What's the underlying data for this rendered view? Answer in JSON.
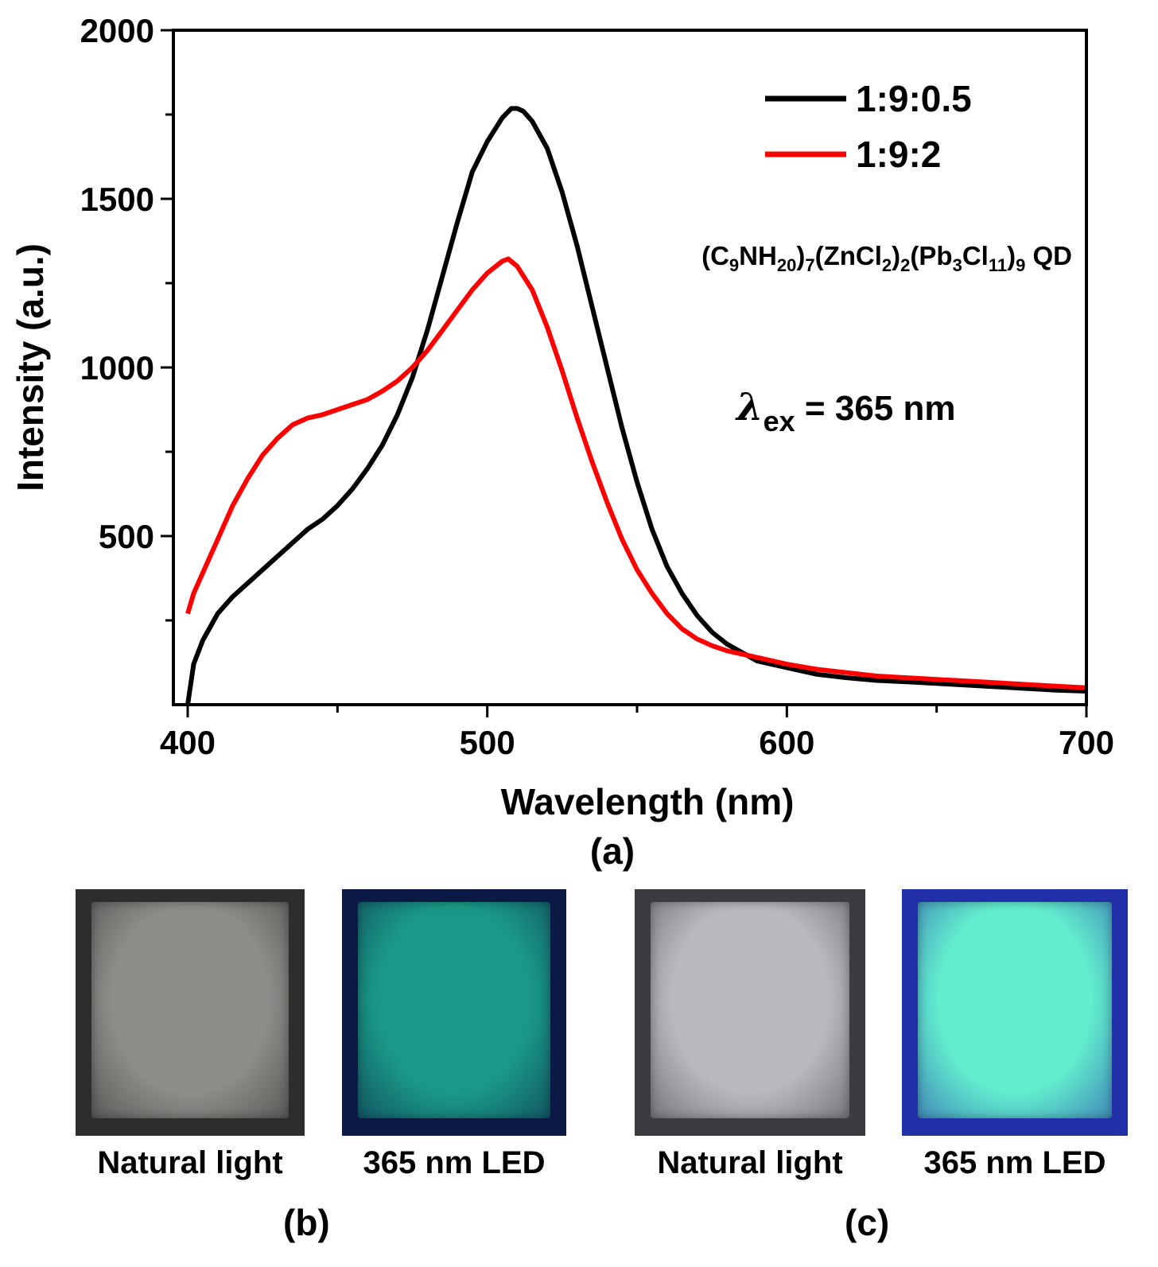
{
  "chart_data": {
    "type": "line",
    "xlabel": "Wavelength (nm)",
    "ylabel": "Intensity (a.u.)",
    "xlim": [
      400,
      700
    ],
    "ylim": [
      0,
      2000
    ],
    "x_ticks": [
      "400",
      "500",
      "600",
      "700"
    ],
    "y_ticks": [
      "500",
      "1000",
      "1500",
      "2000"
    ],
    "grid": false,
    "legend_position": "top-right",
    "annotations": {
      "compound": {
        "text": "(C9NH20)7(ZnCl2)2(Pb3Cl11)9 QD",
        "parts": [
          "(C",
          "9",
          "NH",
          "20",
          ")",
          "7",
          "(ZnCl",
          "2",
          ")",
          "2",
          "(Pb",
          "3",
          "Cl",
          "11",
          ")",
          "9",
          " QD"
        ]
      },
      "excitation": {
        "symbol": "λ",
        "subscript": "ex",
        "text": " = 365 nm"
      }
    },
    "series": [
      {
        "name": "1:9:0.5",
        "color": "#000000",
        "x": [
          400,
          402,
          405,
          410,
          415,
          420,
          425,
          430,
          435,
          440,
          445,
          450,
          455,
          460,
          465,
          470,
          475,
          480,
          485,
          490,
          495,
          500,
          505,
          508,
          510,
          512,
          515,
          520,
          525,
          530,
          535,
          540,
          545,
          550,
          555,
          560,
          565,
          570,
          575,
          580,
          590,
          600,
          610,
          620,
          630,
          640,
          650,
          660,
          670,
          680,
          690,
          700
        ],
        "y": [
          0,
          120,
          190,
          270,
          320,
          360,
          400,
          440,
          480,
          520,
          550,
          590,
          640,
          700,
          770,
          860,
          970,
          1110,
          1270,
          1430,
          1580,
          1670,
          1740,
          1768,
          1768,
          1760,
          1730,
          1650,
          1520,
          1360,
          1180,
          1000,
          820,
          660,
          520,
          410,
          330,
          265,
          215,
          180,
          130,
          110,
          90,
          80,
          72,
          68,
          63,
          58,
          53,
          48,
          43,
          40
        ]
      },
      {
        "name": "1:9:2",
        "color": "#ff0000",
        "x": [
          400,
          402,
          405,
          410,
          415,
          420,
          425,
          430,
          435,
          440,
          445,
          450,
          455,
          460,
          465,
          470,
          475,
          480,
          485,
          490,
          495,
          500,
          505,
          507,
          510,
          515,
          520,
          525,
          530,
          535,
          540,
          545,
          550,
          555,
          560,
          565,
          570,
          575,
          580,
          590,
          600,
          610,
          620,
          630,
          640,
          650,
          660,
          670,
          680,
          690,
          700
        ],
        "y": [
          270,
          330,
          390,
          490,
          590,
          670,
          740,
          790,
          830,
          850,
          860,
          875,
          890,
          905,
          930,
          960,
          1000,
          1050,
          1110,
          1170,
          1230,
          1280,
          1315,
          1322,
          1300,
          1230,
          1120,
          990,
          850,
          720,
          600,
          490,
          400,
          330,
          270,
          225,
          195,
          175,
          160,
          140,
          120,
          105,
          95,
          85,
          80,
          75,
          70,
          65,
          60,
          55,
          50
        ]
      }
    ]
  },
  "photos": {
    "b_natural": {
      "caption": "Natural light",
      "base": "#8e8d8a",
      "edge": "#2e2d2b"
    },
    "b_uv": {
      "caption": "365 nm LED",
      "base": "#1a9a86",
      "edge": "#0b1a44"
    },
    "c_natural": {
      "caption": "Natural light",
      "base": "#b9babd",
      "edge": "#3c3c40"
    },
    "c_uv": {
      "caption": "365 nm LED",
      "base": "#62eecd",
      "edge": "#2230a8"
    }
  },
  "panel_labels": {
    "a": "(a)",
    "b": "(b)",
    "c": "(c)"
  }
}
